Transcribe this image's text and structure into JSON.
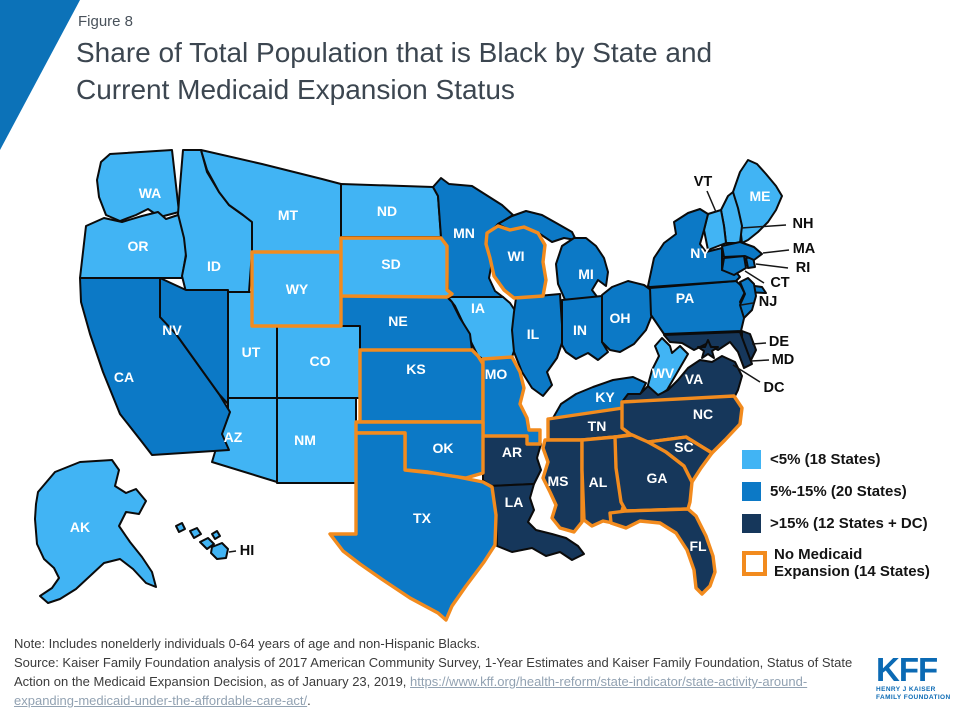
{
  "header": {
    "figure_label": "Figure 8",
    "title_line1": "Share of Total Population that is Black by State and",
    "title_line2": "Current Medicaid Expansion Status"
  },
  "legend": {
    "items": [
      {
        "key": "lt5",
        "label": "<5% (18 States)",
        "color": "#41B4F4"
      },
      {
        "key": "5to15",
        "label": "5%-15% (20 States)",
        "color": "#0C79C6"
      },
      {
        "key": "gt15",
        "label": ">15% (12 States + DC)",
        "color": "#16375B"
      }
    ],
    "expansion": {
      "line1": "No Medicaid",
      "line2": "Expansion (14 States)",
      "color": "#F28B1E"
    }
  },
  "map": {
    "states": [
      {
        "abbr": "WA",
        "category": "lt5",
        "expansion": true
      },
      {
        "abbr": "OR",
        "category": "lt5",
        "expansion": true
      },
      {
        "abbr": "ID",
        "category": "lt5",
        "expansion": true
      },
      {
        "abbr": "MT",
        "category": "lt5",
        "expansion": true
      },
      {
        "abbr": "WY",
        "category": "lt5",
        "expansion": false
      },
      {
        "abbr": "UT",
        "category": "lt5",
        "expansion": true
      },
      {
        "abbr": "CO",
        "category": "lt5",
        "expansion": true
      },
      {
        "abbr": "AZ",
        "category": "lt5",
        "expansion": true
      },
      {
        "abbr": "NM",
        "category": "lt5",
        "expansion": true
      },
      {
        "abbr": "ND",
        "category": "lt5",
        "expansion": true
      },
      {
        "abbr": "SD",
        "category": "lt5",
        "expansion": false
      },
      {
        "abbr": "IA",
        "category": "lt5",
        "expansion": true
      },
      {
        "abbr": "AK",
        "category": "lt5",
        "expansion": true
      },
      {
        "abbr": "HI",
        "category": "lt5",
        "expansion": true
      },
      {
        "abbr": "ME",
        "category": "lt5",
        "expansion": true
      },
      {
        "abbr": "NH",
        "category": "lt5",
        "expansion": true
      },
      {
        "abbr": "VT",
        "category": "lt5",
        "expansion": true
      },
      {
        "abbr": "WV",
        "category": "lt5",
        "expansion": true
      },
      {
        "abbr": "CA",
        "category": "5to15",
        "expansion": true
      },
      {
        "abbr": "NV",
        "category": "5to15",
        "expansion": true
      },
      {
        "abbr": "NE",
        "category": "5to15",
        "expansion": true
      },
      {
        "abbr": "KS",
        "category": "5to15",
        "expansion": false
      },
      {
        "abbr": "MO",
        "category": "5to15",
        "expansion": false
      },
      {
        "abbr": "OK",
        "category": "5to15",
        "expansion": false
      },
      {
        "abbr": "TX",
        "category": "5to15",
        "expansion": false
      },
      {
        "abbr": "MN",
        "category": "5to15",
        "expansion": true
      },
      {
        "abbr": "WI",
        "category": "5to15",
        "expansion": false
      },
      {
        "abbr": "MI",
        "category": "5to15",
        "expansion": true
      },
      {
        "abbr": "IL",
        "category": "5to15",
        "expansion": true
      },
      {
        "abbr": "IN",
        "category": "5to15",
        "expansion": true
      },
      {
        "abbr": "OH",
        "category": "5to15",
        "expansion": true
      },
      {
        "abbr": "KY",
        "category": "5to15",
        "expansion": true
      },
      {
        "abbr": "PA",
        "category": "5to15",
        "expansion": true
      },
      {
        "abbr": "NY",
        "category": "5to15",
        "expansion": true
      },
      {
        "abbr": "NJ",
        "category": "5to15",
        "expansion": true
      },
      {
        "abbr": "CT",
        "category": "5to15",
        "expansion": true
      },
      {
        "abbr": "RI",
        "category": "5to15",
        "expansion": true
      },
      {
        "abbr": "MA",
        "category": "5to15",
        "expansion": true
      },
      {
        "abbr": "DE",
        "category": "gt15",
        "expansion": true
      },
      {
        "abbr": "MD",
        "category": "gt15",
        "expansion": true
      },
      {
        "abbr": "DC",
        "category": "gt15",
        "expansion": true,
        "marker": "star"
      },
      {
        "abbr": "VA",
        "category": "gt15",
        "expansion": true
      },
      {
        "abbr": "AR",
        "category": "gt15",
        "expansion": true
      },
      {
        "abbr": "LA",
        "category": "gt15",
        "expansion": true
      },
      {
        "abbr": "TN",
        "category": "gt15",
        "expansion": false
      },
      {
        "abbr": "MS",
        "category": "gt15",
        "expansion": false
      },
      {
        "abbr": "AL",
        "category": "gt15",
        "expansion": false
      },
      {
        "abbr": "GA",
        "category": "gt15",
        "expansion": false
      },
      {
        "abbr": "FL",
        "category": "gt15",
        "expansion": false
      },
      {
        "abbr": "NC",
        "category": "gt15",
        "expansion": false
      },
      {
        "abbr": "SC",
        "category": "gt15",
        "expansion": false
      }
    ]
  },
  "notes": {
    "note": "Note: Includes nonelderly individuals 0-64 years of age and non-Hispanic Blacks.",
    "source": "Source: Kaiser Family Foundation analysis of 2017 American Community Survey, 1-Year Estimates and Kaiser Family Foundation, Status of State Action on the Medicaid Expansion Decision, as of January 23, 2019, ",
    "link_text": "https://www.kff.org/health-reform/state-indicator/state-activity-around-expanding-medicaid-under-the-affordable-care-act/",
    "suffix": "."
  },
  "logo": {
    "kff": "KFF",
    "tagline1": "HENRY J KAISER",
    "tagline2": "FAMILY FOUNDATION"
  },
  "chart_data": {
    "type": "choropleth",
    "title": "Share of Total Population that is Black by State and Current Medicaid Expansion Status",
    "geography": "United States, by state",
    "measure": "Share of total population that is Black (nonelderly, non-Hispanic)",
    "categories": [
      {
        "label": "<5% (18 States)",
        "color": "#41B4F4",
        "states": [
          "WA",
          "OR",
          "ID",
          "MT",
          "WY",
          "UT",
          "CO",
          "AZ",
          "NM",
          "ND",
          "SD",
          "IA",
          "AK",
          "HI",
          "ME",
          "NH",
          "VT",
          "WV"
        ]
      },
      {
        "label": "5%-15% (20 States)",
        "color": "#0C79C6",
        "states": [
          "CA",
          "NV",
          "NE",
          "KS",
          "MO",
          "OK",
          "TX",
          "MN",
          "WI",
          "MI",
          "IL",
          "IN",
          "OH",
          "KY",
          "PA",
          "NY",
          "NJ",
          "CT",
          "RI",
          "MA"
        ]
      },
      {
        "label": ">15% (12 States + DC)",
        "color": "#16375B",
        "states": [
          "DE",
          "MD",
          "DC",
          "VA",
          "AR",
          "LA",
          "TN",
          "MS",
          "AL",
          "GA",
          "FL",
          "NC",
          "SC"
        ]
      }
    ],
    "overlay": {
      "label": "No Medicaid Expansion (14 States)",
      "color": "#F28B1E",
      "states": [
        "WY",
        "SD",
        "WI",
        "KS",
        "MO",
        "OK",
        "TX",
        "TN",
        "MS",
        "AL",
        "GA",
        "FL",
        "NC",
        "SC"
      ]
    },
    "legend_position": "right"
  }
}
